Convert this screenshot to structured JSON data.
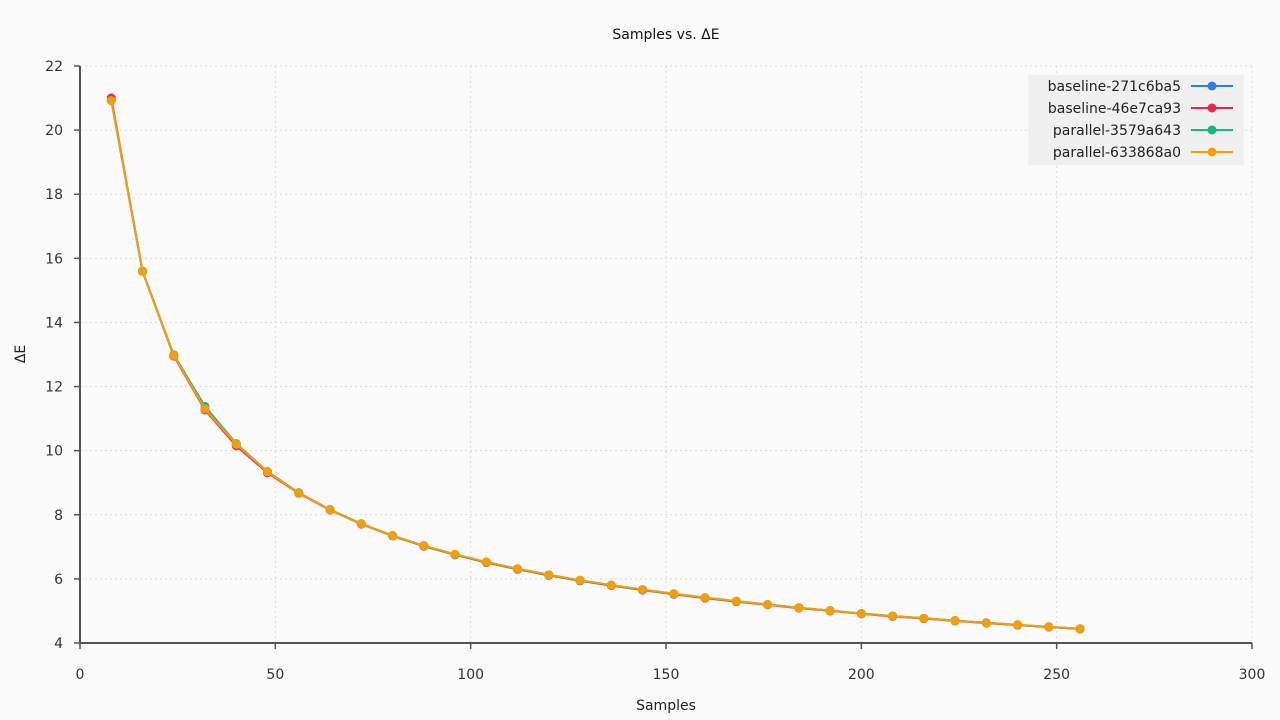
{
  "chart_data": {
    "type": "line",
    "title": "Samples vs. ΔE",
    "xlabel": "Samples",
    "ylabel": "ΔE",
    "xlim": [
      0,
      300
    ],
    "ylim": [
      4,
      22
    ],
    "xticks": [
      0,
      50,
      100,
      150,
      200,
      250,
      300
    ],
    "yticks": [
      4,
      6,
      8,
      10,
      12,
      14,
      16,
      18,
      20,
      22
    ],
    "grid": true,
    "legend_position": "top-right",
    "x": [
      8,
      16,
      24,
      32,
      40,
      48,
      56,
      64,
      72,
      80,
      88,
      96,
      104,
      112,
      120,
      128,
      136,
      144,
      152,
      160,
      168,
      176,
      184,
      192,
      200,
      208,
      216,
      224,
      232,
      240,
      248,
      256
    ],
    "series": [
      {
        "name": "baseline-271c6ba5",
        "color": "#2b7de9",
        "values": [
          20.95,
          15.6,
          12.97,
          11.32,
          10.17,
          9.33,
          8.68,
          8.16,
          7.72,
          7.35,
          7.03,
          6.76,
          6.52,
          6.31,
          6.12,
          5.95,
          5.8,
          5.66,
          5.53,
          5.41,
          5.3,
          5.2,
          5.1,
          5.01,
          4.92,
          4.84,
          4.77,
          4.7,
          4.63,
          4.56,
          4.5,
          4.44
        ]
      },
      {
        "name": "baseline-46e7ca93",
        "color": "#e8254f",
        "values": [
          21.0,
          15.6,
          12.95,
          11.27,
          10.15,
          9.31,
          8.67,
          8.15,
          7.71,
          7.34,
          7.02,
          6.75,
          6.51,
          6.3,
          6.11,
          5.94,
          5.79,
          5.65,
          5.52,
          5.4,
          5.29,
          5.19,
          5.09,
          5.0,
          4.91,
          4.83,
          4.76,
          4.69,
          4.62,
          4.56,
          4.5,
          4.44
        ]
      },
      {
        "name": "parallel-3579a643",
        "color": "#10b981",
        "values": [
          20.92,
          15.6,
          12.99,
          11.38,
          10.22,
          9.35,
          8.69,
          8.16,
          7.72,
          7.35,
          7.03,
          6.76,
          6.52,
          6.31,
          6.12,
          5.95,
          5.8,
          5.66,
          5.53,
          5.41,
          5.3,
          5.2,
          5.1,
          5.01,
          4.92,
          4.84,
          4.77,
          4.7,
          4.63,
          4.56,
          4.5,
          4.44
        ]
      },
      {
        "name": "parallel-633868a0",
        "color": "#f59e0b",
        "values": [
          20.92,
          15.6,
          12.97,
          11.3,
          10.2,
          9.34,
          8.68,
          8.16,
          7.72,
          7.35,
          7.04,
          6.77,
          6.53,
          6.32,
          6.13,
          5.96,
          5.81,
          5.67,
          5.54,
          5.42,
          5.31,
          5.2,
          5.1,
          5.01,
          4.92,
          4.84,
          4.77,
          4.7,
          4.63,
          4.57,
          4.51,
          4.45
        ]
      }
    ]
  }
}
